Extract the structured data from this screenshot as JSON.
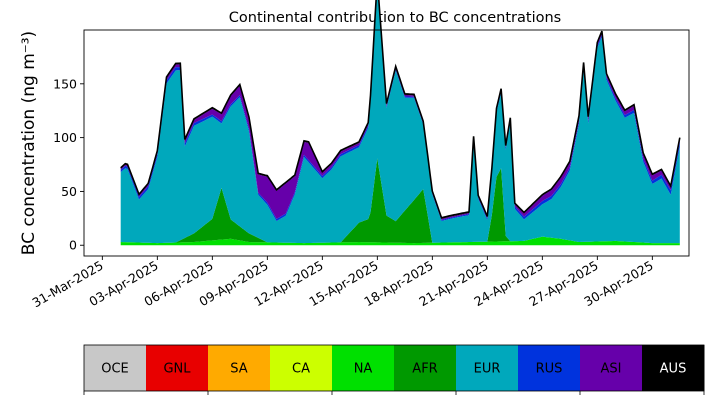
{
  "chart_data": {
    "type": "area",
    "title": "Continental contribution to BC concentrations",
    "ylabel": "BC concentration (ng m⁻³)",
    "xlabel": "",
    "x_range": [
      "2025-03-30",
      "2025-05-02"
    ],
    "ylim": [
      -10,
      200
    ],
    "yticks": [
      0,
      50,
      100,
      150
    ],
    "xticks": [
      "31-Mar-2025",
      "03-Apr-2025",
      "06-Apr-2025",
      "09-Apr-2025",
      "12-Apr-2025",
      "15-Apr-2025",
      "18-Apr-2025",
      "21-Apr-2025",
      "24-Apr-2025",
      "27-Apr-2025",
      "30-Apr-2025"
    ],
    "grid": false,
    "legend": {
      "placement": "bottom",
      "entries": [
        {
          "name": "OCE",
          "color": "#c8c8c8",
          "text_color": "#000000"
        },
        {
          "name": "GNL",
          "color": "#e80000",
          "text_color": "#000000"
        },
        {
          "name": "SA",
          "color": "#ffaa00",
          "text_color": "#000000"
        },
        {
          "name": "CA",
          "color": "#ccff00",
          "text_color": "#000000"
        },
        {
          "name": "NA",
          "color": "#00e000",
          "text_color": "#000000"
        },
        {
          "name": "AFR",
          "color": "#009900",
          "text_color": "#000000"
        },
        {
          "name": "EUR",
          "color": "#00a8bc",
          "text_color": "#000000"
        },
        {
          "name": "RUS",
          "color": "#0033dd",
          "text_color": "#000000"
        },
        {
          "name": "ASI",
          "color": "#6600aa",
          "text_color": "#000000"
        },
        {
          "name": "AUS",
          "color": "#000000",
          "text_color": "#ffffff"
        }
      ]
    },
    "total_line_color": "#000000",
    "series": [
      {
        "name": "NA",
        "points": [
          [
            "2025-04-01",
            3
          ],
          [
            "2025-04-03",
            2
          ],
          [
            "2025-04-05",
            3
          ],
          [
            "2025-04-07",
            6
          ],
          [
            "2025-04-08",
            3
          ],
          [
            "2025-04-11",
            2
          ],
          [
            "2025-04-14",
            3
          ],
          [
            "2025-04-17",
            2
          ],
          [
            "2025-04-20",
            3
          ],
          [
            "2025-04-23",
            4
          ],
          [
            "2025-04-24",
            8
          ],
          [
            "2025-04-25",
            6
          ],
          [
            "2025-04-26",
            3
          ],
          [
            "2025-04-28",
            4
          ],
          [
            "2025-04-30",
            2
          ],
          [
            "2025-05-01",
            2
          ]
        ]
      },
      {
        "name": "AFR",
        "points": [
          [
            "2025-04-01",
            0
          ],
          [
            "2025-04-04",
            0
          ],
          [
            "2025-04-05",
            8
          ],
          [
            "2025-04-06",
            20
          ],
          [
            "2025-04-06T12:00",
            48
          ],
          [
            "2025-04-07",
            18
          ],
          [
            "2025-04-08",
            8
          ],
          [
            "2025-04-09",
            0
          ],
          [
            "2025-04-13",
            0
          ],
          [
            "2025-04-14",
            18
          ],
          [
            "2025-04-14T14:00",
            22
          ],
          [
            "2025-04-15",
            78
          ],
          [
            "2025-04-15T12:00",
            25
          ],
          [
            "2025-04-16",
            20
          ],
          [
            "2025-04-17",
            40
          ],
          [
            "2025-04-17T12:00",
            50
          ],
          [
            "2025-04-18",
            0
          ],
          [
            "2025-04-21",
            0
          ],
          [
            "2025-04-21T06:00",
            25
          ],
          [
            "2025-04-21T12:00",
            60
          ],
          [
            "2025-04-21T18:00",
            68
          ],
          [
            "2025-04-22",
            5
          ],
          [
            "2025-04-22T06:00",
            0
          ],
          [
            "2025-05-01",
            0
          ]
        ]
      },
      {
        "name": "EUR",
        "points": [
          [
            "2025-04-01",
            65
          ],
          [
            "2025-04-01T08:00",
            70
          ],
          [
            "2025-04-02",
            40
          ],
          [
            "2025-04-02T12:00",
            50
          ],
          [
            "2025-04-03",
            80
          ],
          [
            "2025-04-03T12:00",
            148
          ],
          [
            "2025-04-04",
            160
          ],
          [
            "2025-04-04T06:00",
            158
          ],
          [
            "2025-04-04T12:00",
            85
          ],
          [
            "2025-04-05",
            100
          ],
          [
            "2025-04-06",
            95
          ],
          [
            "2025-04-06T12:00",
            60
          ],
          [
            "2025-04-07",
            105
          ],
          [
            "2025-04-07T12:00",
            120
          ],
          [
            "2025-04-08",
            95
          ],
          [
            "2025-04-08T12:00",
            40
          ],
          [
            "2025-04-09",
            35
          ],
          [
            "2025-04-09T12:00",
            20
          ],
          [
            "2025-04-10",
            25
          ],
          [
            "2025-04-10T12:00",
            45
          ],
          [
            "2025-04-11",
            80
          ],
          [
            "2025-04-11T12:00",
            70
          ],
          [
            "2025-04-12",
            60
          ],
          [
            "2025-04-12T12:00",
            68
          ],
          [
            "2025-04-13",
            80
          ],
          [
            "2025-04-14",
            70
          ],
          [
            "2025-04-14T12:00",
            85
          ],
          [
            "2025-04-15",
            162
          ],
          [
            "2025-04-15T12:00",
            100
          ],
          [
            "2025-04-16",
            140
          ],
          [
            "2025-04-16T12:00",
            105
          ],
          [
            "2025-04-17",
            95
          ],
          [
            "2025-04-17T12:00",
            60
          ],
          [
            "2025-04-18",
            45
          ],
          [
            "2025-04-18T12:00",
            20
          ],
          [
            "2025-04-19",
            22
          ],
          [
            "2025-04-20",
            25
          ],
          [
            "2025-04-20T06:00",
            95
          ],
          [
            "2025-04-20T12:00",
            40
          ],
          [
            "2025-04-21",
            20
          ],
          [
            "2025-04-21T12:00",
            60
          ],
          [
            "2025-04-22",
            80
          ],
          [
            "2025-04-22T06:00",
            110
          ],
          [
            "2025-04-22T12:00",
            30
          ],
          [
            "2025-04-23",
            20
          ],
          [
            "2025-04-23T12:00",
            25
          ],
          [
            "2025-04-24",
            30
          ],
          [
            "2025-04-24T12:00",
            36
          ],
          [
            "2025-04-25",
            48
          ],
          [
            "2025-04-25T12:00",
            65
          ],
          [
            "2025-04-26",
            110
          ],
          [
            "2025-04-26T06:00",
            160
          ],
          [
            "2025-04-26T12:00",
            110
          ],
          [
            "2025-04-27",
            180
          ],
          [
            "2025-04-27T06:00",
            190
          ],
          [
            "2025-04-27T12:00",
            150
          ],
          [
            "2025-04-28",
            130
          ],
          [
            "2025-04-28T12:00",
            115
          ],
          [
            "2025-04-29",
            120
          ],
          [
            "2025-04-29T12:00",
            75
          ],
          [
            "2025-04-30",
            55
          ],
          [
            "2025-04-30T12:00",
            60
          ],
          [
            "2025-05-01",
            45
          ],
          [
            "2025-05-01T12:00",
            90
          ]
        ]
      },
      {
        "name": "RUS",
        "points": [
          [
            "2025-04-01",
            2
          ],
          [
            "2025-04-04",
            3
          ],
          [
            "2025-04-06",
            2
          ],
          [
            "2025-04-08",
            2
          ],
          [
            "2025-04-11",
            2
          ],
          [
            "2025-04-14",
            2
          ],
          [
            "2025-04-17",
            1
          ],
          [
            "2025-04-20",
            1
          ],
          [
            "2025-04-24",
            3
          ],
          [
            "2025-04-27",
            2
          ],
          [
            "2025-04-30",
            3
          ],
          [
            "2025-05-01",
            4
          ]
        ]
      },
      {
        "name": "ASI",
        "points": [
          [
            "2025-04-01",
            1
          ],
          [
            "2025-04-05",
            3
          ],
          [
            "2025-04-08",
            10
          ],
          [
            "2025-04-09",
            24
          ],
          [
            "2025-04-10",
            28
          ],
          [
            "2025-04-10T12:00",
            15
          ],
          [
            "2025-04-11",
            12
          ],
          [
            "2025-04-11T06:00",
            16
          ],
          [
            "2025-04-12",
            3
          ],
          [
            "2025-04-14",
            2
          ],
          [
            "2025-04-18",
            1
          ],
          [
            "2025-04-22",
            1
          ],
          [
            "2025-04-24",
            5
          ],
          [
            "2025-04-25",
            6
          ],
          [
            "2025-04-27",
            2
          ],
          [
            "2025-04-30",
            5
          ],
          [
            "2025-05-01",
            3
          ]
        ]
      },
      {
        "name": "AUS",
        "points": [
          [
            "2025-04-01",
            1
          ],
          [
            "2025-05-01",
            1
          ]
        ]
      }
    ]
  }
}
